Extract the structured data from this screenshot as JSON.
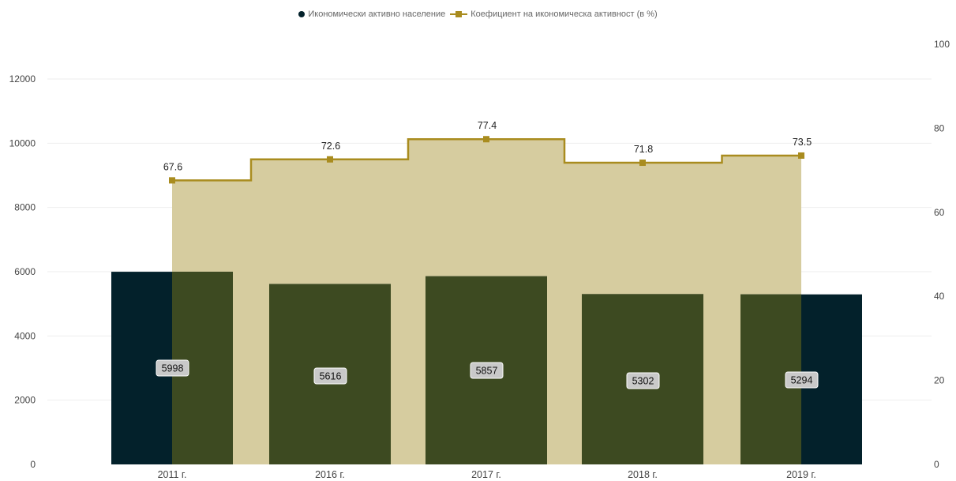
{
  "legend": {
    "bars_label": "Икономически активно население",
    "line_label": "Коефициент на икономическа активност (в %)"
  },
  "colors": {
    "bar_dark": "#03212b",
    "bar_olive": "#3d4a21",
    "area_fill": "#d6cc9f",
    "line": "#a98c1f",
    "grid": "#eeeeee",
    "axis_text": "#444444",
    "label_box": "#c9c9c9"
  },
  "chart_data": {
    "type": "bar",
    "categories": [
      "2011 г.",
      "2016 г.",
      "2017 г.",
      "2018 г.",
      "2019 г."
    ],
    "series": [
      {
        "name": "Икономически активно население",
        "type": "bar",
        "axis": "left",
        "values": [
          5998,
          5616,
          5857,
          5302,
          5294
        ]
      },
      {
        "name": "Коефициент на икономическа активност (в %)",
        "type": "line",
        "axis": "right",
        "values": [
          67.6,
          72.6,
          77.4,
          71.8,
          73.5
        ]
      }
    ],
    "y_left": {
      "ylim": [
        0,
        12000
      ],
      "ticks": [
        0,
        2000,
        4000,
        6000,
        8000,
        10000,
        12000
      ]
    },
    "y_right": {
      "ylim": [
        0,
        100
      ],
      "ticks": [
        0,
        20,
        40,
        60,
        80,
        100
      ]
    },
    "grid": true,
    "legend_position": "top-center"
  }
}
